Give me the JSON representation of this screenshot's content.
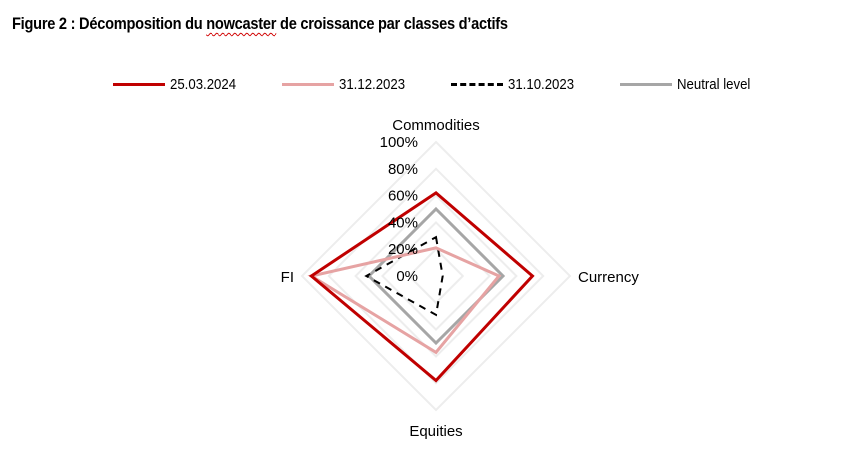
{
  "title": {
    "prefix": "Figure 2 : Décomposition du ",
    "underlined": "nowcaster",
    "suffix": " de croissance par classes d’actifs"
  },
  "legend": [
    {
      "label": "25.03.2024",
      "color": "#C00000",
      "style": "solid"
    },
    {
      "label": "31.12.2023",
      "color": "#E6A3A3",
      "style": "solid"
    },
    {
      "label": "31.10.2023",
      "color": "#000000",
      "style": "dashed"
    },
    {
      "label": "Neutral level",
      "color": "#A6A6A6",
      "style": "solid"
    }
  ],
  "chart_data": {
    "type": "radar",
    "title": "Décomposition du nowcaster de croissance par classes d’actifs",
    "categories": [
      "Commodities",
      "Currency",
      "Equities",
      "FI"
    ],
    "radial_ticks": [
      "0%",
      "20%",
      "40%",
      "60%",
      "80%",
      "100%"
    ],
    "rlim": [
      0,
      100
    ],
    "grid": true,
    "legend_position": "top",
    "series": [
      {
        "name": "25.03.2024",
        "values": [
          62,
          72,
          78,
          93
        ],
        "color": "#C00000",
        "style": "solid"
      },
      {
        "name": "31.12.2023",
        "values": [
          21,
          47,
          57,
          93
        ],
        "color": "#E6A3A3",
        "style": "solid"
      },
      {
        "name": "31.10.2023",
        "values": [
          29,
          5,
          29,
          52
        ],
        "color": "#000000",
        "style": "dashed"
      },
      {
        "name": "Neutral level",
        "values": [
          50,
          50,
          50,
          50
        ],
        "color": "#A6A6A6",
        "style": "solid"
      }
    ]
  }
}
